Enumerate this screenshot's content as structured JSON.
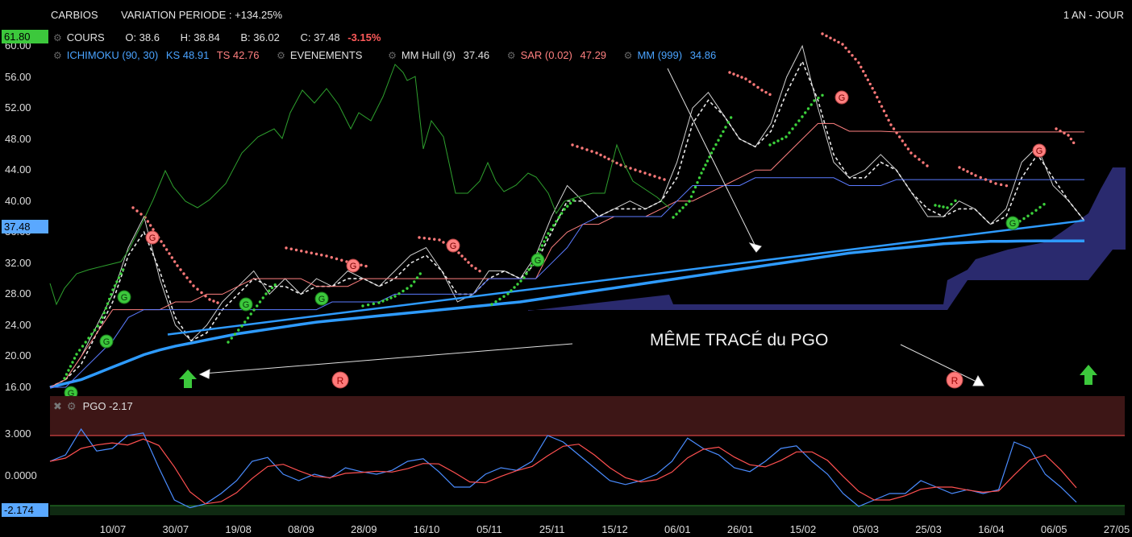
{
  "header": {
    "ticker": "CARBIOS",
    "variation": "VARIATION PERIODE : +134.25%",
    "period": "1 AN - JOUR"
  },
  "legend": {
    "cours_label": "COURS",
    "open": "O: 38.6",
    "high": "H: 38.84",
    "low": "B: 36.02",
    "close": "C: 37.48",
    "change": "-3.15%",
    "ichimoku": "ICHIMOKU (90, 30)",
    "ks": "KS 48.91",
    "ts": "TS 42.76",
    "events": "EVENEMENTS",
    "hull": "MM Hull (9)",
    "hull_val": "37.46",
    "sar": "SAR (0.02)",
    "sar_val": "47.29",
    "mm": "MM (999)",
    "mm_val": "34.86"
  },
  "annotation": "MÊME TRACÉ du PGO",
  "pgo_panel": {
    "label": "PGO",
    "value": "-2.17",
    "ticks": [
      "3.000",
      "0.0000"
    ],
    "current": "-2.174"
  },
  "price_marks": {
    "high_box": "61.80",
    "last_box": "37.48"
  },
  "colors": {
    "price": "#d0d0d0",
    "hull": "#e8e8e8",
    "sar_up": "#3cd23c",
    "sar_down": "#ff7a7a",
    "mm999": "#2e9bff",
    "ichimoku_ks": "#ff8080",
    "ichimoku_ts": "#5b7bff",
    "cloud": "#2f2f7a",
    "green_curve": "#2ea02e",
    "pgo": "#4a8cff",
    "pgo_signal": "#ff5050"
  },
  "chart_data": {
    "type": "line",
    "title": "CARBIOS",
    "ylim": [
      16,
      61.8
    ],
    "yticks": [
      "60.00",
      "56.00",
      "52.00",
      "48.00",
      "44.00",
      "40.00",
      "36.00",
      "32.00",
      "28.00",
      "24.00",
      "20.00",
      "16.00"
    ],
    "xticks": [
      "10/07",
      "30/07",
      "19/08",
      "08/09",
      "28/09",
      "16/10",
      "05/11",
      "25/11",
      "15/12",
      "06/01",
      "26/01",
      "15/02",
      "05/03",
      "25/03",
      "16/04",
      "06/05",
      "27/05"
    ],
    "series": [
      {
        "name": "COURS",
        "values": [
          16,
          17,
          20,
          24,
          28,
          34,
          38,
          30,
          24,
          22,
          24,
          27,
          29,
          31,
          28,
          30,
          28,
          30,
          29,
          31,
          30,
          29,
          31,
          33,
          34,
          31,
          27,
          28,
          31,
          31,
          30,
          33,
          38,
          42,
          40,
          38,
          39,
          40,
          39,
          40,
          45,
          52,
          54,
          51,
          48,
          47,
          50,
          56,
          60,
          52,
          45,
          43,
          44,
          46,
          44,
          41,
          38,
          38,
          40,
          39,
          37,
          39,
          45,
          47,
          42,
          40,
          37.48
        ]
      },
      {
        "name": "MM Hull (9)",
        "values": [
          16,
          17,
          19,
          23,
          27,
          33,
          36,
          31,
          25,
          22,
          23,
          26,
          28,
          30,
          29,
          29,
          28,
          29,
          29,
          30,
          30,
          29,
          30,
          32,
          33,
          31,
          28,
          28,
          30,
          31,
          30,
          32,
          36,
          40,
          40,
          38,
          39,
          39,
          39,
          40,
          43,
          50,
          53,
          51,
          48,
          47,
          49,
          54,
          58,
          53,
          46,
          43,
          43,
          45,
          44,
          41,
          39,
          38,
          39,
          39,
          37,
          38,
          43,
          46,
          43,
          40,
          37.46
        ]
      },
      {
        "name": "MM (999)",
        "values": [
          16,
          16.5,
          17,
          17.8,
          18.6,
          19.4,
          20.2,
          20.8,
          21.3,
          21.7,
          22.1,
          22.5,
          22.9,
          23.2,
          23.5,
          23.8,
          24.1,
          24.4,
          24.6,
          24.8,
          25,
          25.2,
          25.4,
          25.6,
          25.8,
          26,
          26.2,
          26.4,
          26.6,
          26.8,
          27,
          27.3,
          27.6,
          27.9,
          28.2,
          28.5,
          28.8,
          29.1,
          29.4,
          29.7,
          30,
          30.3,
          30.6,
          30.9,
          31.2,
          31.5,
          31.8,
          32.1,
          32.4,
          32.7,
          33,
          33.3,
          33.5,
          33.7,
          33.9,
          34.1,
          34.3,
          34.5,
          34.6,
          34.7,
          34.8,
          34.8,
          34.85,
          34.86,
          34.86,
          34.86,
          34.86
        ]
      },
      {
        "name": "KS",
        "values": [
          16,
          17,
          20,
          23,
          26,
          26,
          26,
          26,
          27,
          27,
          28,
          28,
          29,
          30,
          30,
          30,
          30,
          29,
          29,
          29,
          30,
          30,
          30,
          30,
          30,
          30,
          30,
          30,
          30,
          30,
          30,
          30,
          34,
          36,
          37,
          37,
          38,
          38,
          38,
          39,
          40,
          40,
          41,
          42,
          43,
          44,
          44,
          46,
          48,
          50,
          50,
          49,
          49,
          49,
          48.91,
          48.91,
          48.91,
          48.91,
          48.91,
          48.91,
          48.91,
          48.91,
          48.91,
          48.91,
          48.91,
          48.91,
          48.91
        ]
      },
      {
        "name": "TS",
        "values": [
          16,
          16,
          18,
          20,
          22,
          25,
          26,
          26,
          26,
          26,
          26,
          26,
          26,
          26,
          26,
          26,
          26,
          26,
          27,
          27,
          27,
          27,
          28,
          28,
          28,
          28,
          28,
          28,
          30,
          30,
          30,
          30,
          32,
          34,
          37,
          38,
          38,
          38,
          38,
          38,
          40,
          42,
          42,
          42,
          42,
          43,
          43,
          43,
          43,
          43,
          43,
          42,
          42,
          42,
          42.76,
          42.76,
          42.76,
          42.76,
          42.76,
          42.76,
          42.76,
          42.76,
          42.76,
          42.76,
          42.76,
          42.76,
          42.76
        ]
      },
      {
        "name": "PGO",
        "values": [
          1,
          1.5,
          3.5,
          1.8,
          2,
          3,
          3.2,
          0.5,
          -2,
          -2.6,
          -2.3,
          -1.5,
          -0.5,
          1,
          1.3,
          0,
          -0.5,
          0,
          -0.3,
          0.5,
          0.2,
          0,
          0.3,
          1,
          1.2,
          0.2,
          -1,
          -1,
          0,
          0.5,
          0.3,
          1,
          3,
          2.5,
          1.5,
          0.5,
          -0.5,
          -0.8,
          -0.5,
          0,
          1,
          2.8,
          2,
          1.5,
          0.5,
          0.2,
          1,
          2,
          2.2,
          1,
          0,
          -1.5,
          -2.5,
          -2,
          -1.5,
          -1.5,
          -0.5,
          -1,
          -1.5,
          -1.2,
          -1.5,
          -1.2,
          2.5,
          2,
          0,
          -1,
          -2.174
        ]
      }
    ]
  }
}
